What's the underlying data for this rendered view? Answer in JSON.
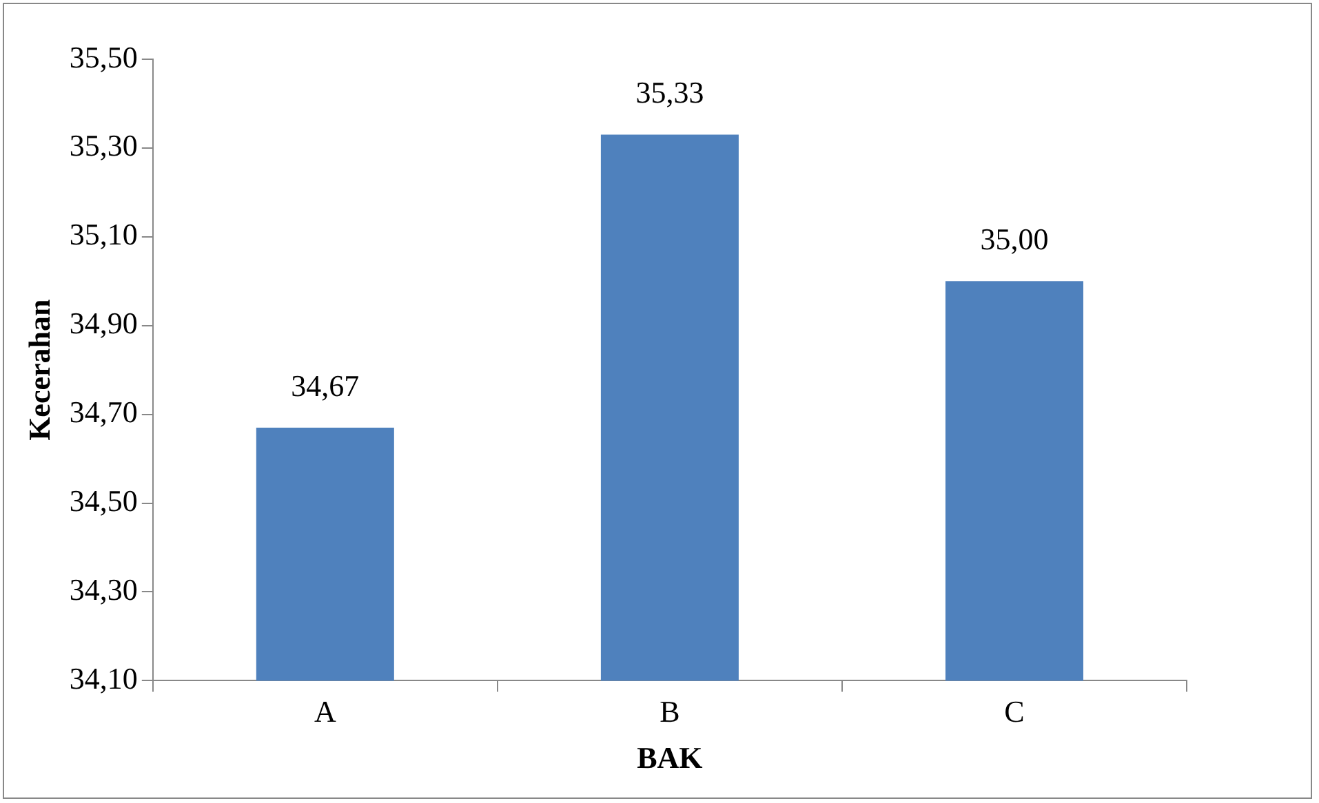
{
  "chart_data": {
    "type": "bar",
    "xlabel": "BAK",
    "ylabel": "Kecerahan",
    "categories": [
      "A",
      "B",
      "C"
    ],
    "values": [
      34.67,
      35.33,
      35.0
    ],
    "color": "#4f81bd",
    "value_labels": [
      "34,67",
      "35,33",
      "35,00"
    ],
    "ylim": [
      34.1,
      35.5
    ],
    "yticks": [
      {
        "value": 34.1,
        "label": "34,10"
      },
      {
        "value": 34.3,
        "label": "34,30"
      },
      {
        "value": 34.5,
        "label": "34,50"
      },
      {
        "value": 34.7,
        "label": "34,70"
      },
      {
        "value": 34.9,
        "label": "34,90"
      },
      {
        "value": 35.1,
        "label": "35,10"
      },
      {
        "value": 35.3,
        "label": "35,30"
      },
      {
        "value": 35.5,
        "label": "35,50"
      }
    ],
    "grid": false,
    "legend": false
  }
}
